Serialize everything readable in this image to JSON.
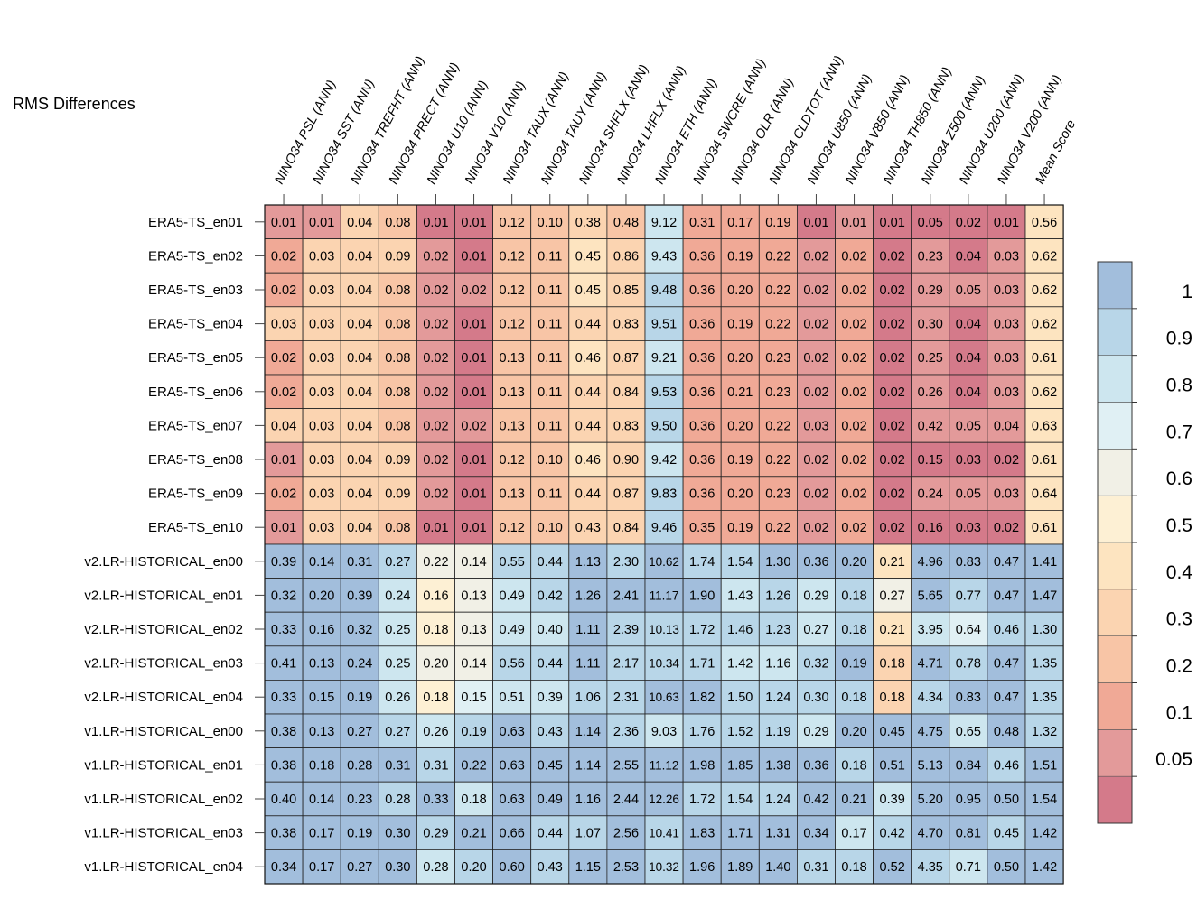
{
  "chart_data": {
    "type": "heatmap",
    "title": "RMS Differences",
    "columns": [
      "NINO34 PSL (ANN)",
      "NINO34 SST (ANN)",
      "NINO34 TREFHT (ANN)",
      "NINO34 PRECT (ANN)",
      "NINO34 U10 (ANN)",
      "NINO34 V10 (ANN)",
      "NINO34 TAUX (ANN)",
      "NINO34 TAUY (ANN)",
      "NINO34 SHFLX (ANN)",
      "NINO34 LHFLX (ANN)",
      "NINO34 ETH (ANN)",
      "NINO34 SWCRE (ANN)",
      "NINO34 OLR (ANN)",
      "NINO34 CLDTOT (ANN)",
      "NINO34 U850 (ANN)",
      "NINO34 V850 (ANN)",
      "NINO34 TH850 (ANN)",
      "NINO34 Z500 (ANN)",
      "NINO34 U200 (ANN)",
      "NINO34 V200 (ANN)",
      "Mean Score"
    ],
    "rows": [
      "ERA5-TS_en01",
      "ERA5-TS_en02",
      "ERA5-TS_en03",
      "ERA5-TS_en04",
      "ERA5-TS_en05",
      "ERA5-TS_en06",
      "ERA5-TS_en07",
      "ERA5-TS_en08",
      "ERA5-TS_en09",
      "ERA5-TS_en10",
      "v2.LR-HISTORICAL_en00",
      "v2.LR-HISTORICAL_en01",
      "v2.LR-HISTORICAL_en02",
      "v2.LR-HISTORICAL_en03",
      "v2.LR-HISTORICAL_en04",
      "v1.LR-HISTORICAL_en00",
      "v1.LR-HISTORICAL_en01",
      "v1.LR-HISTORICAL_en02",
      "v1.LR-HISTORICAL_en03",
      "v1.LR-HISTORICAL_en04"
    ],
    "values": [
      [
        "0.01",
        "0.01",
        "0.04",
        "0.08",
        "0.01",
        "0.01",
        "0.12",
        "0.10",
        "0.38",
        "0.48",
        "9.12",
        "0.31",
        "0.17",
        "0.19",
        "0.01",
        "0.01",
        "0.01",
        "0.05",
        "0.02",
        "0.01",
        "0.56"
      ],
      [
        "0.02",
        "0.03",
        "0.04",
        "0.09",
        "0.02",
        "0.01",
        "0.12",
        "0.11",
        "0.45",
        "0.86",
        "9.43",
        "0.36",
        "0.19",
        "0.22",
        "0.02",
        "0.02",
        "0.02",
        "0.23",
        "0.04",
        "0.03",
        "0.62"
      ],
      [
        "0.02",
        "0.03",
        "0.04",
        "0.08",
        "0.02",
        "0.02",
        "0.12",
        "0.11",
        "0.45",
        "0.85",
        "9.48",
        "0.36",
        "0.20",
        "0.22",
        "0.02",
        "0.02",
        "0.02",
        "0.29",
        "0.05",
        "0.03",
        "0.62"
      ],
      [
        "0.03",
        "0.03",
        "0.04",
        "0.08",
        "0.02",
        "0.01",
        "0.12",
        "0.11",
        "0.44",
        "0.83",
        "9.51",
        "0.36",
        "0.19",
        "0.22",
        "0.02",
        "0.02",
        "0.02",
        "0.30",
        "0.04",
        "0.03",
        "0.62"
      ],
      [
        "0.02",
        "0.03",
        "0.04",
        "0.08",
        "0.02",
        "0.01",
        "0.13",
        "0.11",
        "0.46",
        "0.87",
        "9.21",
        "0.36",
        "0.20",
        "0.23",
        "0.02",
        "0.02",
        "0.02",
        "0.25",
        "0.04",
        "0.03",
        "0.61"
      ],
      [
        "0.02",
        "0.03",
        "0.04",
        "0.08",
        "0.02",
        "0.01",
        "0.13",
        "0.11",
        "0.44",
        "0.84",
        "9.53",
        "0.36",
        "0.21",
        "0.23",
        "0.02",
        "0.02",
        "0.02",
        "0.26",
        "0.04",
        "0.03",
        "0.62"
      ],
      [
        "0.04",
        "0.03",
        "0.04",
        "0.08",
        "0.02",
        "0.02",
        "0.13",
        "0.11",
        "0.44",
        "0.83",
        "9.50",
        "0.36",
        "0.20",
        "0.22",
        "0.03",
        "0.02",
        "0.02",
        "0.42",
        "0.05",
        "0.04",
        "0.63"
      ],
      [
        "0.01",
        "0.03",
        "0.04",
        "0.09",
        "0.02",
        "0.01",
        "0.12",
        "0.10",
        "0.46",
        "0.90",
        "9.42",
        "0.36",
        "0.19",
        "0.22",
        "0.02",
        "0.02",
        "0.02",
        "0.15",
        "0.03",
        "0.02",
        "0.61"
      ],
      [
        "0.02",
        "0.03",
        "0.04",
        "0.09",
        "0.02",
        "0.01",
        "0.13",
        "0.11",
        "0.44",
        "0.87",
        "9.83",
        "0.36",
        "0.20",
        "0.23",
        "0.02",
        "0.02",
        "0.02",
        "0.24",
        "0.05",
        "0.03",
        "0.64"
      ],
      [
        "0.01",
        "0.03",
        "0.04",
        "0.08",
        "0.01",
        "0.01",
        "0.12",
        "0.10",
        "0.43",
        "0.84",
        "9.46",
        "0.35",
        "0.19",
        "0.22",
        "0.02",
        "0.02",
        "0.02",
        "0.16",
        "0.03",
        "0.02",
        "0.61"
      ],
      [
        "0.39",
        "0.14",
        "0.31",
        "0.27",
        "0.22",
        "0.14",
        "0.55",
        "0.44",
        "1.13",
        "2.30",
        "10.62",
        "1.74",
        "1.54",
        "1.30",
        "0.36",
        "0.20",
        "0.21",
        "4.96",
        "0.83",
        "0.47",
        "1.41"
      ],
      [
        "0.32",
        "0.20",
        "0.39",
        "0.24",
        "0.16",
        "0.13",
        "0.49",
        "0.42",
        "1.26",
        "2.41",
        "11.17",
        "1.90",
        "1.43",
        "1.26",
        "0.29",
        "0.18",
        "0.27",
        "5.65",
        "0.77",
        "0.47",
        "1.47"
      ],
      [
        "0.33",
        "0.16",
        "0.32",
        "0.25",
        "0.18",
        "0.13",
        "0.49",
        "0.40",
        "1.11",
        "2.39",
        "10.13",
        "1.72",
        "1.46",
        "1.23",
        "0.27",
        "0.18",
        "0.21",
        "3.95",
        "0.64",
        "0.46",
        "1.30"
      ],
      [
        "0.41",
        "0.13",
        "0.24",
        "0.25",
        "0.20",
        "0.14",
        "0.56",
        "0.44",
        "1.11",
        "2.17",
        "10.34",
        "1.71",
        "1.42",
        "1.16",
        "0.32",
        "0.19",
        "0.18",
        "4.71",
        "0.78",
        "0.47",
        "1.35"
      ],
      [
        "0.33",
        "0.15",
        "0.19",
        "0.26",
        "0.18",
        "0.15",
        "0.51",
        "0.39",
        "1.06",
        "2.31",
        "10.63",
        "1.82",
        "1.50",
        "1.24",
        "0.30",
        "0.18",
        "0.18",
        "4.34",
        "0.83",
        "0.47",
        "1.35"
      ],
      [
        "0.38",
        "0.13",
        "0.27",
        "0.27",
        "0.26",
        "0.19",
        "0.63",
        "0.43",
        "1.14",
        "2.36",
        "9.03",
        "1.76",
        "1.52",
        "1.19",
        "0.29",
        "0.20",
        "0.45",
        "4.75",
        "0.65",
        "0.48",
        "1.32"
      ],
      [
        "0.38",
        "0.18",
        "0.28",
        "0.31",
        "0.31",
        "0.22",
        "0.63",
        "0.45",
        "1.14",
        "2.55",
        "11.12",
        "1.98",
        "1.85",
        "1.38",
        "0.36",
        "0.18",
        "0.51",
        "5.13",
        "0.84",
        "0.46",
        "1.51"
      ],
      [
        "0.40",
        "0.14",
        "0.23",
        "0.28",
        "0.33",
        "0.18",
        "0.63",
        "0.49",
        "1.16",
        "2.44",
        "12.26",
        "1.72",
        "1.54",
        "1.24",
        "0.42",
        "0.21",
        "0.39",
        "5.20",
        "0.95",
        "0.50",
        "1.54"
      ],
      [
        "0.38",
        "0.17",
        "0.19",
        "0.30",
        "0.29",
        "0.21",
        "0.66",
        "0.44",
        "1.07",
        "2.56",
        "10.41",
        "1.83",
        "1.71",
        "1.31",
        "0.34",
        "0.17",
        "0.42",
        "4.70",
        "0.81",
        "0.45",
        "1.42"
      ],
      [
        "0.34",
        "0.17",
        "0.27",
        "0.30",
        "0.28",
        "0.20",
        "0.60",
        "0.43",
        "1.15",
        "2.53",
        "10.32",
        "1.96",
        "1.89",
        "1.40",
        "0.31",
        "0.18",
        "0.52",
        "4.35",
        "0.71",
        "0.50",
        "1.42"
      ]
    ],
    "colorbar": {
      "bounds": [
        0,
        0.05,
        0.1,
        0.2,
        0.3,
        0.4,
        0.5,
        0.6,
        0.7,
        0.8,
        0.9,
        1.0,
        2.0
      ],
      "colors": [
        "#d47a8a",
        "#e39a9a",
        "#f0a996",
        "#f8c5a6",
        "#fbd4b1",
        "#fde4c0",
        "#fdf0d4",
        "#f1f0e6",
        "#e0f0f4",
        "#cde6ef",
        "#b8d6e8",
        "#a2bedc"
      ],
      "tick_labels": [
        "0.05",
        "0.1",
        "0.2",
        "0.3",
        "0.4",
        "0.5",
        "0.6",
        "0.7",
        "0.8",
        "0.9",
        "1"
      ],
      "tick_values": [
        0.05,
        0.1,
        0.2,
        0.3,
        0.4,
        0.5,
        0.6,
        0.7,
        0.8,
        0.9,
        1.0
      ]
    },
    "normalization": {
      "description_visible": false,
      "reference_columns_max": [
        0.1,
        0.1,
        0.13,
        0.3,
        0.32,
        0.21,
        0.6,
        0.45,
        1.1,
        2.4,
        10.5,
        1.8,
        1.6,
        1.3,
        0.33,
        0.19,
        0.45,
        4.6,
        0.8,
        0.47,
        1.4
      ]
    }
  }
}
